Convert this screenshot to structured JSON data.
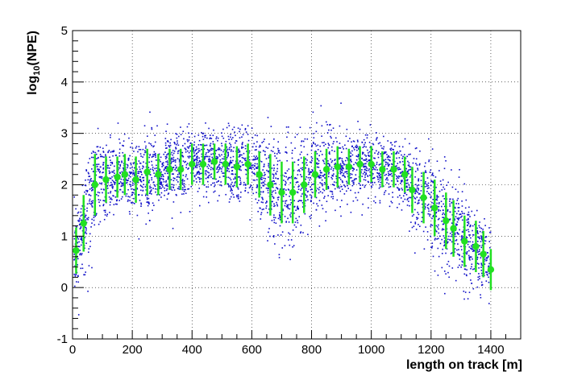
{
  "chart_data": {
    "type": "scatter",
    "title": "",
    "xlabel": "length on track [m]",
    "ylabel_base": "log",
    "ylabel_sub": "10",
    "ylabel_rest": "(NPE)",
    "xlim": [
      0,
      1500
    ],
    "ylim": [
      -1,
      5
    ],
    "x_ticks": [
      0,
      200,
      400,
      600,
      800,
      1000,
      1200,
      1400
    ],
    "x_tick_labels": [
      "0",
      "200",
      "400",
      "600",
      "800",
      "1000",
      "1200",
      "1400"
    ],
    "y_ticks": [
      -1,
      0,
      1,
      2,
      3,
      4,
      5
    ],
    "y_tick_labels": [
      "-1",
      "0",
      "1",
      "2",
      "3",
      "4",
      "5"
    ],
    "grid": true,
    "scatter_color": "#1010c8",
    "profile_color": "#22e022",
    "profile_x": [
      12,
      37,
      75,
      112,
      150,
      175,
      212,
      250,
      287,
      325,
      362,
      400,
      437,
      475,
      512,
      550,
      587,
      625,
      662,
      700,
      737,
      775,
      812,
      850,
      887,
      925,
      962,
      1000,
      1037,
      1075,
      1112,
      1137,
      1175,
      1212,
      1250,
      1275,
      1312,
      1350,
      1375,
      1400
    ],
    "profile_mean": [
      0.72,
      1.25,
      2.0,
      2.1,
      2.15,
      2.2,
      2.1,
      2.25,
      2.2,
      2.3,
      2.3,
      2.4,
      2.4,
      2.45,
      2.4,
      2.35,
      2.4,
      2.2,
      2.0,
      1.85,
      1.85,
      2.0,
      2.2,
      2.3,
      2.35,
      2.35,
      2.4,
      2.4,
      2.3,
      2.3,
      2.2,
      1.9,
      1.75,
      1.55,
      1.3,
      1.15,
      0.9,
      0.8,
      0.65,
      0.35
    ],
    "profile_err": [
      0.45,
      0.55,
      0.6,
      0.45,
      0.4,
      0.4,
      0.45,
      0.45,
      0.4,
      0.4,
      0.4,
      0.4,
      0.4,
      0.35,
      0.4,
      0.4,
      0.4,
      0.45,
      0.6,
      0.6,
      0.6,
      0.55,
      0.45,
      0.4,
      0.4,
      0.35,
      0.35,
      0.35,
      0.35,
      0.35,
      0.35,
      0.45,
      0.5,
      0.55,
      0.55,
      0.55,
      0.5,
      0.5,
      0.45,
      0.4
    ]
  }
}
